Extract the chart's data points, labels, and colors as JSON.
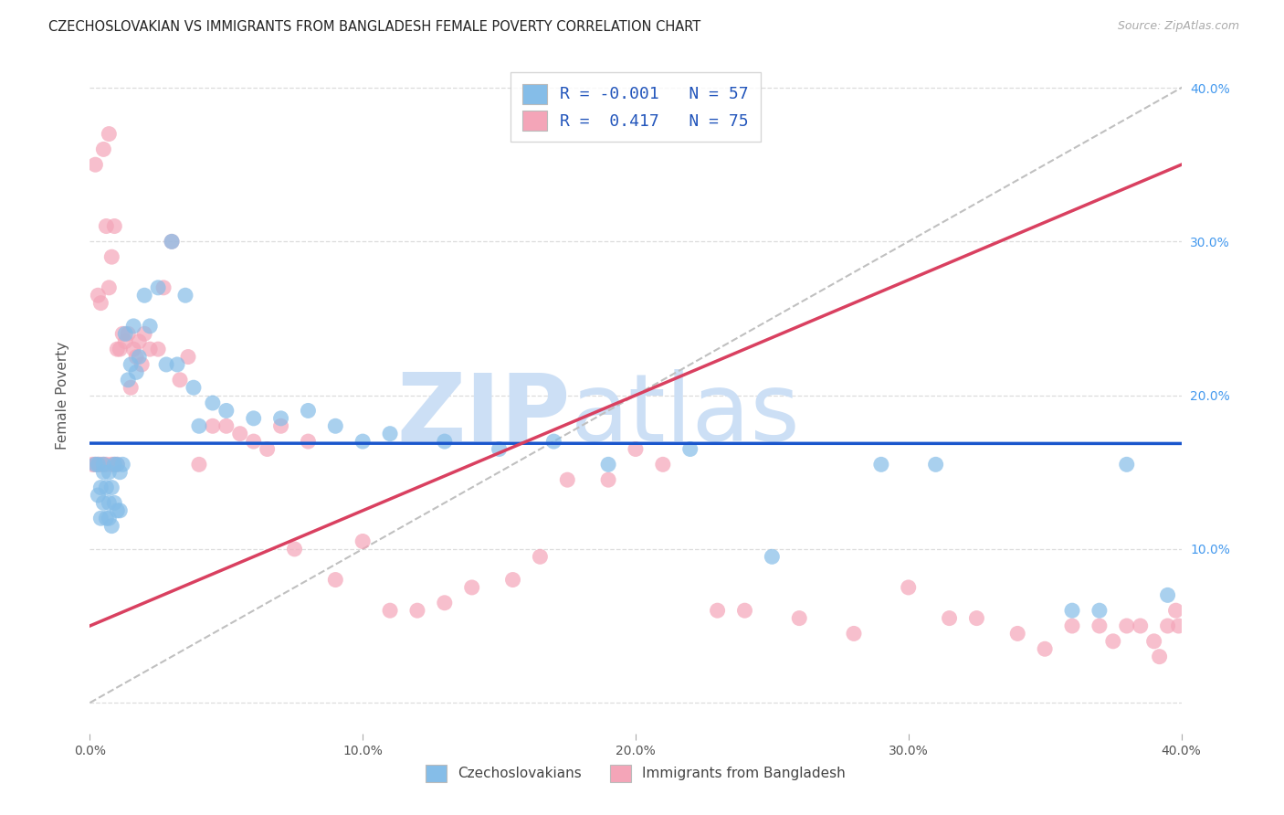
{
  "title": "CZECHOSLOVAKIAN VS IMMIGRANTS FROM BANGLADESH FEMALE POVERTY CORRELATION CHART",
  "source": "Source: ZipAtlas.com",
  "ylabel": "Female Poverty",
  "xlim": [
    0.0,
    0.4
  ],
  "ylim": [
    -0.02,
    0.42
  ],
  "color_blue": "#85bde8",
  "color_pink": "#f4a5b8",
  "color_blue_line": "#1a56cc",
  "color_pink_line": "#d94060",
  "color_diag": "#c0c0c0",
  "watermark_zip": "ZIP",
  "watermark_atlas": "atlas",
  "watermark_color_zip": "#ccdff5",
  "watermark_color_atlas": "#ccdff5",
  "blue_R": -0.001,
  "pink_R": 0.417,
  "blue_N": 57,
  "pink_N": 75,
  "background_color": "#ffffff",
  "grid_color": "#dddddd",
  "blue_x": [
    0.002,
    0.003,
    0.003,
    0.004,
    0.004,
    0.005,
    0.005,
    0.005,
    0.006,
    0.006,
    0.007,
    0.007,
    0.007,
    0.008,
    0.008,
    0.009,
    0.009,
    0.01,
    0.01,
    0.011,
    0.011,
    0.012,
    0.013,
    0.014,
    0.015,
    0.016,
    0.017,
    0.018,
    0.02,
    0.022,
    0.025,
    0.028,
    0.03,
    0.032,
    0.035,
    0.038,
    0.04,
    0.045,
    0.05,
    0.06,
    0.07,
    0.08,
    0.09,
    0.1,
    0.11,
    0.13,
    0.15,
    0.17,
    0.19,
    0.22,
    0.25,
    0.29,
    0.31,
    0.36,
    0.37,
    0.38,
    0.395
  ],
  "blue_y": [
    0.155,
    0.135,
    0.155,
    0.14,
    0.12,
    0.13,
    0.15,
    0.155,
    0.14,
    0.12,
    0.13,
    0.15,
    0.12,
    0.14,
    0.115,
    0.155,
    0.13,
    0.155,
    0.125,
    0.15,
    0.125,
    0.155,
    0.24,
    0.21,
    0.22,
    0.245,
    0.215,
    0.225,
    0.265,
    0.245,
    0.27,
    0.22,
    0.3,
    0.22,
    0.265,
    0.205,
    0.18,
    0.195,
    0.19,
    0.185,
    0.185,
    0.19,
    0.18,
    0.17,
    0.175,
    0.17,
    0.165,
    0.17,
    0.155,
    0.165,
    0.095,
    0.155,
    0.155,
    0.06,
    0.06,
    0.155,
    0.07
  ],
  "pink_x": [
    0.001,
    0.002,
    0.002,
    0.003,
    0.003,
    0.004,
    0.004,
    0.005,
    0.005,
    0.006,
    0.006,
    0.007,
    0.007,
    0.008,
    0.008,
    0.009,
    0.009,
    0.01,
    0.01,
    0.011,
    0.012,
    0.013,
    0.014,
    0.015,
    0.016,
    0.017,
    0.018,
    0.019,
    0.02,
    0.022,
    0.025,
    0.027,
    0.03,
    0.033,
    0.036,
    0.04,
    0.045,
    0.05,
    0.055,
    0.06,
    0.065,
    0.07,
    0.075,
    0.08,
    0.09,
    0.1,
    0.11,
    0.12,
    0.13,
    0.14,
    0.155,
    0.165,
    0.175,
    0.19,
    0.2,
    0.21,
    0.23,
    0.24,
    0.26,
    0.28,
    0.3,
    0.315,
    0.325,
    0.34,
    0.35,
    0.36,
    0.37,
    0.375,
    0.38,
    0.385,
    0.39,
    0.392,
    0.395,
    0.398,
    0.399
  ],
  "pink_y": [
    0.155,
    0.35,
    0.155,
    0.265,
    0.155,
    0.26,
    0.155,
    0.36,
    0.155,
    0.31,
    0.155,
    0.27,
    0.37,
    0.29,
    0.155,
    0.31,
    0.155,
    0.23,
    0.155,
    0.23,
    0.24,
    0.235,
    0.24,
    0.205,
    0.23,
    0.225,
    0.235,
    0.22,
    0.24,
    0.23,
    0.23,
    0.27,
    0.3,
    0.21,
    0.225,
    0.155,
    0.18,
    0.18,
    0.175,
    0.17,
    0.165,
    0.18,
    0.1,
    0.17,
    0.08,
    0.105,
    0.06,
    0.06,
    0.065,
    0.075,
    0.08,
    0.095,
    0.145,
    0.145,
    0.165,
    0.155,
    0.06,
    0.06,
    0.055,
    0.045,
    0.075,
    0.055,
    0.055,
    0.045,
    0.035,
    0.05,
    0.05,
    0.04,
    0.05,
    0.05,
    0.04,
    0.03,
    0.05,
    0.06,
    0.05
  ]
}
